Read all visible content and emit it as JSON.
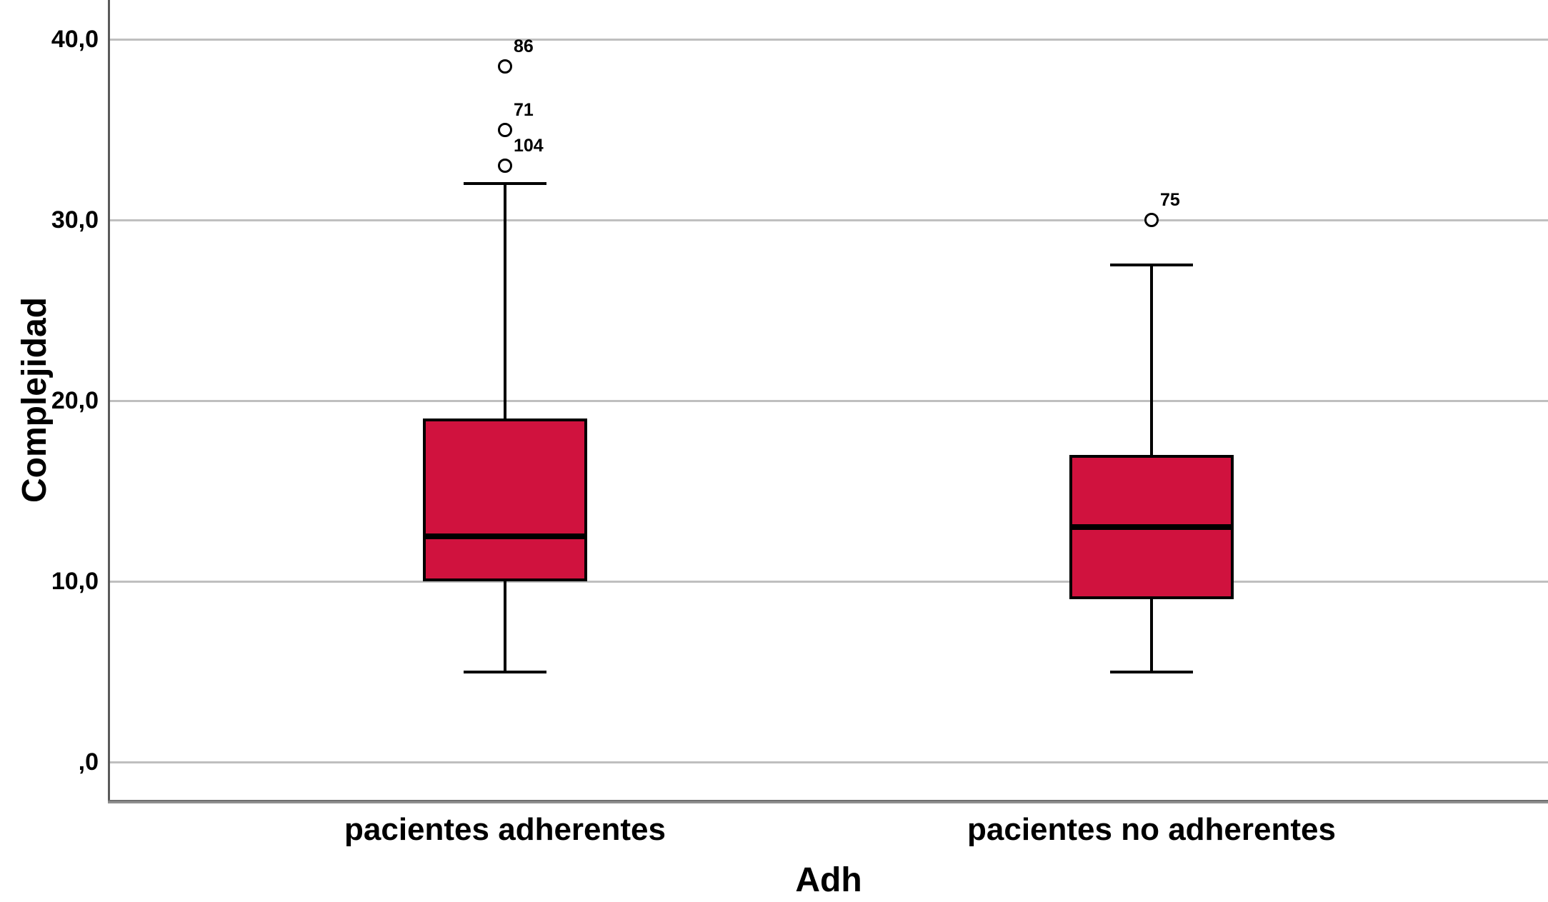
{
  "chart_data": {
    "type": "boxplot",
    "title": "",
    "xlabel": "Adh",
    "ylabel": "Complejidad",
    "grid": "horizontal",
    "legend": "none",
    "ylim": [
      -2.2,
      42.1
    ],
    "y_ticks": [
      {
        "value": 0,
        "label": ",0"
      },
      {
        "value": 10,
        "label": "10,0"
      },
      {
        "value": 20,
        "label": "20,0"
      },
      {
        "value": 30,
        "label": "30,0"
      },
      {
        "value": 40,
        "label": "40,0"
      }
    ],
    "categories": [
      "pacientes adherentes",
      "pacientes no adherentes"
    ],
    "boxes": [
      {
        "category": "pacientes adherentes",
        "whisker_min": 5,
        "q1": 10,
        "median": 12.5,
        "q3": 19,
        "whisker_max": 32,
        "outliers": [
          {
            "value": 38.5,
            "label": "86"
          },
          {
            "value": 35,
            "label": "71"
          },
          {
            "value": 33,
            "label": "104"
          }
        ]
      },
      {
        "category": "pacientes no adherentes",
        "whisker_min": 5,
        "q1": 9,
        "median": 13,
        "q3": 17,
        "whisker_max": 27.5,
        "outliers": [
          {
            "value": 30,
            "label": "75"
          }
        ]
      }
    ],
    "colors": {
      "box_fill": "#D0123E",
      "box_border": "#000000",
      "median": "#000000",
      "grid": "#BFBFBF",
      "axis": "#6E6E6E",
      "outlier_fill": "#FFFFFF",
      "text": "#000000"
    }
  }
}
